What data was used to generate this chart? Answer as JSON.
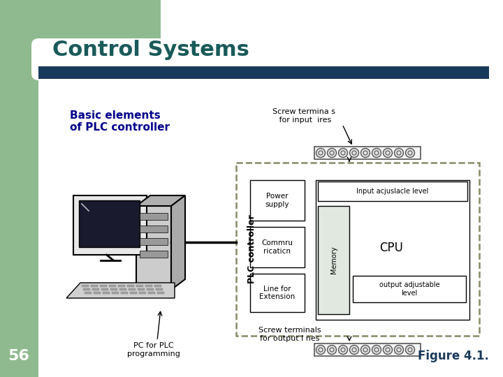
{
  "title": "Control Systems",
  "slide_number": "56",
  "figure_label": "Figure 4.1.",
  "subtitle": "Basic elements\nof PLC controller",
  "header_bar_color": "#1a3a5c",
  "green_sidebar_color": "#8fba8f",
  "title_color": "#1a5a5a",
  "subtitle_color": "#00008b",
  "figure_label_color": "#1a3a5c",
  "background_color": "#ffffff",
  "screw_terminals_input_label": "Screw termina s\n for input  ires",
  "screw_terminals_output_label": "Screw terminals\nfor output l nes",
  "pc_label": "PC for PLC\nprogramming",
  "power_supply_label": "Power\nsupply",
  "communication_label": "Commru\nricaticn",
  "line_extension_label": "Line for\nExtension",
  "input_adjust_label": "Input acjuslacle level",
  "output_adjust_label": "output adjustable\nlevel",
  "memory_label": "Memory",
  "cpu_label": "CPU",
  "plc_controller_label": "PLC controller"
}
